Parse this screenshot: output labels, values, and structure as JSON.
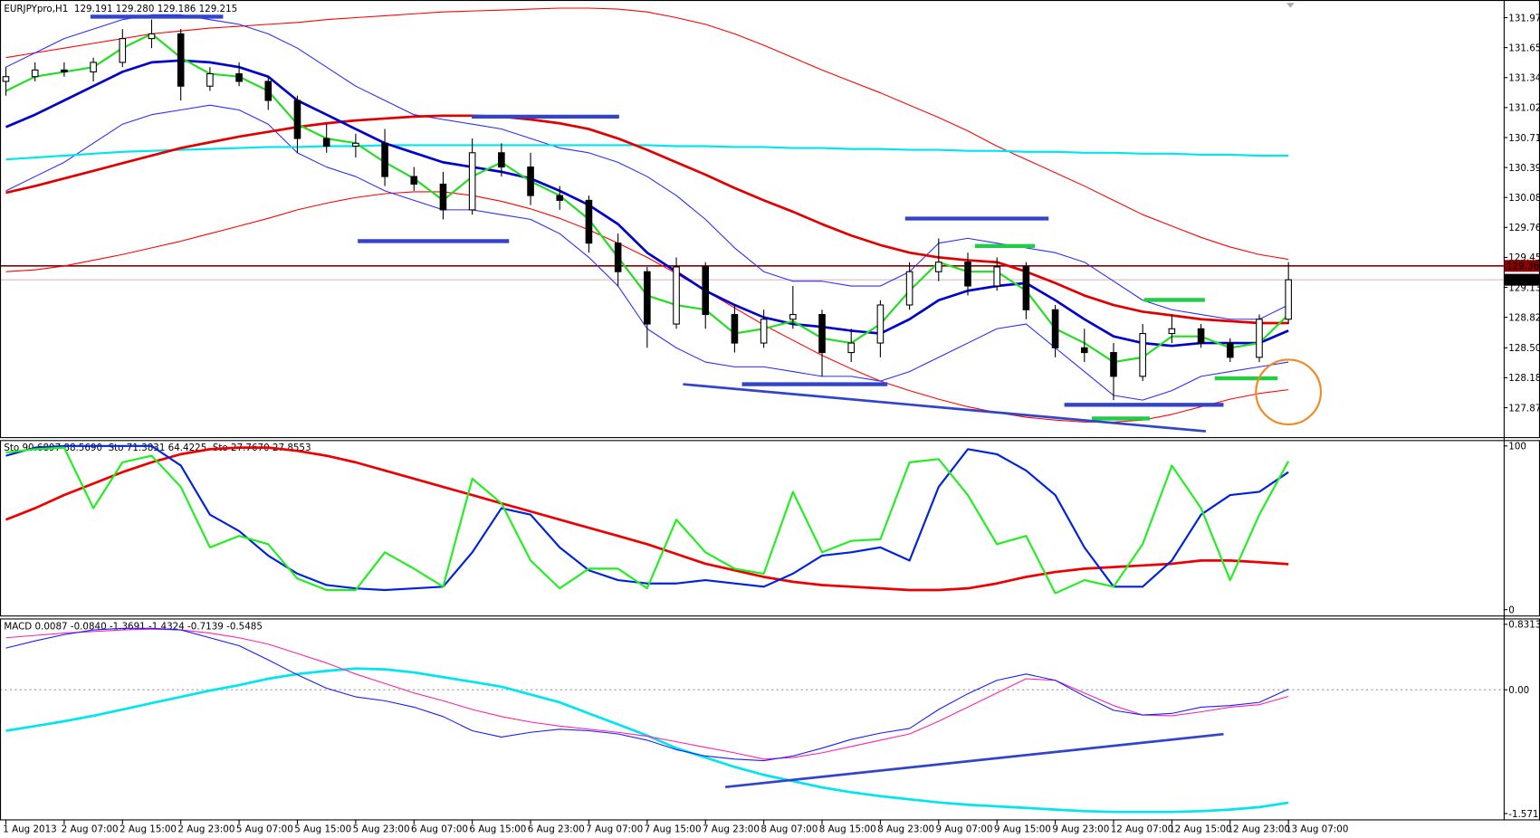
{
  "chart_data": [
    {
      "type": "candlestick",
      "title": "EURJPYpro,H1  129.191 129.280 129.186 129.215",
      "categories": [
        "1 Aug 2013",
        null,
        "2 Aug 07:00",
        null,
        "2 Aug 15:00",
        null,
        "2 Aug 23:00",
        null,
        "5 Aug 07:00",
        null,
        "5 Aug 15:00",
        null,
        "5 Aug 23:00",
        null,
        "6 Aug 07:00",
        null,
        "6 Aug 15:00",
        null,
        "6 Aug 23:00",
        null,
        "7 Aug 07:00",
        null,
        "7 Aug 15:00",
        null,
        "7 Aug 23:00",
        null,
        "8 Aug 07:00",
        null,
        "8 Aug 15:00",
        null,
        "8 Aug 23:00",
        null,
        "9 Aug 07:00",
        null,
        "9 Aug 15:00",
        null,
        "9 Aug 23:00",
        null,
        "12 Aug 07:00",
        null,
        "12 Aug 15:00",
        null,
        "12 Aug 23:00",
        null,
        "13 Aug 07:00"
      ],
      "open": [
        131.3,
        131.35,
        131.42,
        131.4,
        131.5,
        131.75,
        131.8,
        131.25,
        131.38,
        131.3,
        131.1,
        130.7,
        130.62,
        130.65,
        130.3,
        130.22,
        129.95,
        130.55,
        130.4,
        130.1,
        130.05,
        129.6,
        129.3,
        128.75,
        129.35,
        128.85,
        128.55,
        128.8,
        128.85,
        128.45,
        128.55,
        128.95,
        129.3,
        129.4,
        129.15,
        129.35,
        128.9,
        128.5,
        128.45,
        128.2,
        128.65,
        128.7,
        128.55,
        128.4,
        128.8
      ],
      "high": [
        131.45,
        131.5,
        131.5,
        131.55,
        131.85,
        131.95,
        131.85,
        131.45,
        131.5,
        131.35,
        131.15,
        130.85,
        130.75,
        130.8,
        130.4,
        130.35,
        130.7,
        130.65,
        130.55,
        130.2,
        130.1,
        129.7,
        129.35,
        129.45,
        129.4,
        128.95,
        128.9,
        129.15,
        128.9,
        128.7,
        129.0,
        129.4,
        129.65,
        129.5,
        129.45,
        129.4,
        128.95,
        128.7,
        128.55,
        128.75,
        128.85,
        128.75,
        128.6,
        128.85,
        129.4
      ],
      "low": [
        131.15,
        131.3,
        131.35,
        131.3,
        131.45,
        131.65,
        131.1,
        131.2,
        131.25,
        131.0,
        130.55,
        130.55,
        130.5,
        130.2,
        130.15,
        129.85,
        129.9,
        130.3,
        130.0,
        129.95,
        129.5,
        129.15,
        128.5,
        128.7,
        128.7,
        128.45,
        128.5,
        128.7,
        128.2,
        128.35,
        128.4,
        128.9,
        129.2,
        129.05,
        129.1,
        128.8,
        128.4,
        128.35,
        127.95,
        128.15,
        128.55,
        128.5,
        128.35,
        128.35,
        128.75
      ],
      "close": [
        131.35,
        131.42,
        131.4,
        131.5,
        131.75,
        131.8,
        131.25,
        131.38,
        131.3,
        131.1,
        130.7,
        130.62,
        130.65,
        130.3,
        130.22,
        129.95,
        130.55,
        130.4,
        130.1,
        130.05,
        129.6,
        129.3,
        128.75,
        129.35,
        128.85,
        128.55,
        128.8,
        128.85,
        128.45,
        128.55,
        128.95,
        129.3,
        129.4,
        129.15,
        129.35,
        128.9,
        128.5,
        128.45,
        128.2,
        128.65,
        128.7,
        128.55,
        128.4,
        128.8,
        129.215
      ],
      "series": [
        {
          "color": "#ff0000",
          "width": 1,
          "values": [
            131.55,
            131.6,
            131.65,
            131.7,
            131.75,
            131.8,
            131.83,
            131.86,
            131.88,
            131.9,
            131.92,
            131.95,
            131.97,
            131.99,
            132.01,
            132.03,
            132.04,
            132.05,
            132.06,
            132.07,
            132.07,
            132.06,
            132.03,
            131.97,
            131.9,
            131.8,
            131.68,
            131.55,
            131.42,
            131.3,
            131.18,
            131.05,
            130.92,
            130.78,
            130.62,
            130.48,
            130.34,
            130.2,
            130.05,
            129.9,
            129.78,
            129.66,
            129.56,
            129.48,
            129.43
          ]
        },
        {
          "color": "#ff0000",
          "width": 1,
          "values": [
            129.3,
            129.32,
            129.36,
            129.42,
            129.48,
            129.55,
            129.62,
            129.7,
            129.78,
            129.86,
            129.95,
            130.02,
            130.08,
            130.12,
            130.14,
            130.14,
            130.1,
            130.04,
            129.96,
            129.86,
            129.74,
            129.6,
            129.45,
            129.28,
            129.1,
            128.92,
            128.74,
            128.58,
            128.42,
            128.28,
            128.15,
            128.05,
            127.96,
            127.88,
            127.82,
            127.77,
            127.74,
            127.72,
            127.72,
            127.74,
            127.8,
            127.88,
            127.96,
            128.02,
            128.06
          ]
        },
        {
          "color": "#2b2bff",
          "width": 1,
          "values": [
            131.45,
            131.6,
            131.75,
            131.85,
            131.95,
            132.0,
            132.0,
            131.95,
            131.9,
            131.8,
            131.65,
            131.45,
            131.25,
            131.1,
            130.95,
            130.9,
            130.85,
            130.8,
            130.7,
            130.6,
            130.55,
            130.45,
            130.3,
            130.1,
            129.85,
            129.55,
            129.3,
            129.2,
            129.2,
            129.15,
            129.15,
            129.3,
            129.6,
            129.65,
            129.6,
            129.55,
            129.5,
            129.4,
            129.2,
            129.0,
            128.9,
            128.85,
            128.8,
            128.8,
            128.95
          ]
        },
        {
          "color": "#2b2bff",
          "width": 1,
          "values": [
            130.15,
            130.3,
            130.45,
            130.65,
            130.85,
            130.95,
            131.0,
            131.05,
            131.0,
            130.85,
            130.55,
            130.4,
            130.3,
            130.15,
            130.05,
            129.95,
            129.95,
            129.9,
            129.85,
            129.7,
            129.45,
            129.15,
            128.7,
            128.5,
            128.35,
            128.3,
            128.3,
            128.25,
            128.2,
            128.2,
            128.15,
            128.25,
            128.4,
            128.55,
            128.7,
            128.75,
            128.5,
            128.25,
            128.0,
            127.95,
            128.05,
            128.2,
            128.25,
            128.3,
            128.35
          ]
        },
        {
          "color": "#00e5ee",
          "width": 2,
          "values": [
            130.48,
            130.5,
            130.52,
            130.54,
            130.56,
            130.57,
            130.58,
            130.59,
            130.6,
            130.61,
            130.61,
            130.62,
            130.62,
            130.63,
            130.63,
            130.63,
            130.63,
            130.63,
            130.63,
            130.63,
            130.63,
            130.63,
            130.63,
            130.62,
            130.62,
            130.61,
            130.61,
            130.6,
            130.6,
            130.59,
            130.59,
            130.58,
            130.58,
            130.57,
            130.57,
            130.56,
            130.56,
            130.55,
            130.55,
            130.54,
            130.54,
            130.53,
            130.53,
            130.52,
            130.52
          ]
        },
        {
          "color": "#e00000",
          "width": 2.5,
          "values": [
            130.13,
            130.2,
            130.28,
            130.36,
            130.44,
            130.52,
            130.6,
            130.66,
            130.72,
            130.77,
            130.82,
            130.86,
            130.89,
            130.91,
            130.93,
            130.94,
            130.94,
            130.93,
            130.9,
            130.86,
            130.8,
            130.7,
            130.58,
            130.45,
            130.32,
            130.18,
            130.05,
            129.93,
            129.8,
            129.68,
            129.58,
            129.5,
            129.45,
            129.42,
            129.4,
            129.3,
            129.18,
            129.05,
            128.95,
            128.88,
            128.84,
            128.8,
            128.78,
            128.76,
            128.76
          ]
        },
        {
          "color": "#0000cc",
          "width": 2.5,
          "values": [
            130.82,
            130.95,
            131.1,
            131.25,
            131.4,
            131.5,
            131.52,
            131.5,
            131.45,
            131.35,
            131.1,
            130.95,
            130.8,
            130.65,
            130.55,
            130.45,
            130.4,
            130.35,
            130.28,
            130.15,
            130.0,
            129.8,
            129.5,
            129.3,
            129.1,
            128.95,
            128.82,
            128.75,
            128.72,
            128.68,
            128.65,
            128.8,
            129.0,
            129.1,
            129.15,
            129.18,
            129.0,
            128.8,
            128.62,
            128.55,
            128.52,
            128.55,
            128.55,
            128.55,
            128.68
          ]
        },
        {
          "color": "#22dd22",
          "width": 2,
          "values": [
            131.2,
            131.35,
            131.4,
            131.45,
            131.65,
            131.8,
            131.55,
            131.38,
            131.35,
            131.2,
            130.85,
            130.7,
            130.65,
            130.45,
            130.28,
            130.05,
            130.3,
            130.45,
            130.25,
            130.1,
            129.85,
            129.45,
            129.05,
            128.95,
            128.9,
            128.65,
            128.7,
            128.78,
            128.6,
            128.55,
            128.75,
            129.1,
            129.4,
            129.3,
            129.3,
            129.1,
            128.7,
            128.55,
            128.35,
            128.4,
            128.62,
            128.62,
            128.5,
            128.55,
            128.85
          ]
        }
      ],
      "level": 129.361,
      "level_color": "#8b0000",
      "last_price": 129.215,
      "ylim": [
        127.561,
        132.135
      ],
      "yticks": [
        {
          "value": 131.97,
          "label": "131.970"
        },
        131.655,
        {
          "value": 131.34,
          "label": "131.340"
        },
        131.025,
        {
          "value": 130.71,
          "label": "130.710"
        },
        130.395,
        {
          "value": 130.08,
          "label": "130.080"
        },
        129.765,
        {
          "value": 129.45,
          "label": "129.450"
        },
        129.135,
        {
          "value": 128.82,
          "label": "128.820"
        },
        {
          "value": 128.5,
          "label": "128.500"
        },
        128.185,
        {
          "value": 127.87,
          "label": "127.870"
        }
      ],
      "grid": false
    },
    {
      "type": "line",
      "title": "Sto 90.6897 88.5690  Sto 71.3831 64.4225  Sto 27.7670 27.8553",
      "series": [
        {
          "color": "#ee0000",
          "width": 2.5,
          "values": [
            55,
            62,
            70,
            77,
            84,
            90,
            95,
            98,
            99,
            99,
            97,
            94,
            90,
            85,
            80,
            75,
            70,
            65,
            60,
            55,
            50,
            45,
            40,
            34,
            28,
            24,
            20,
            17,
            15,
            14,
            13,
            12,
            12,
            13,
            16,
            20,
            23,
            25,
            26,
            27,
            28,
            30,
            30,
            29,
            27.77
          ]
        },
        {
          "color": "#0022dd",
          "width": 2,
          "values": [
            94,
            99,
            100,
            100,
            100,
            100,
            88,
            58,
            48,
            33,
            22,
            15,
            13,
            12,
            13,
            14,
            35,
            62,
            58,
            38,
            24,
            18,
            16,
            16,
            18,
            16,
            14,
            22,
            33,
            35,
            38,
            30,
            75,
            98,
            95,
            85,
            70,
            38,
            14,
            14,
            30,
            58,
            70,
            72,
            84
          ]
        },
        {
          "color": "#22ee22",
          "width": 2,
          "values": [
            96,
            98,
            99,
            62,
            90,
            94,
            75,
            38,
            45,
            40,
            19,
            12,
            12,
            35,
            25,
            14,
            80,
            65,
            30,
            13,
            25,
            25,
            13,
            55,
            35,
            25,
            22,
            72,
            35,
            42,
            43,
            90,
            92,
            70,
            40,
            45,
            10,
            18,
            14,
            40,
            88,
            62,
            18,
            58,
            90.69
          ]
        }
      ],
      "ylim": [
        -3.6,
        103
      ],
      "yticks": [
        100,
        0
      ],
      "grid": false
    },
    {
      "type": "line",
      "title": "MACD 0.0087 -0.0840 -1.3691 -1.4324 -0.7139 -0.5485",
      "series": [
        {
          "color": "#00e5ee",
          "width": 2.5,
          "values": [
            -0.52,
            -0.46,
            -0.4,
            -0.33,
            -0.25,
            -0.17,
            -0.09,
            -0.01,
            0.06,
            0.14,
            0.2,
            0.24,
            0.27,
            0.26,
            0.22,
            0.16,
            0.1,
            0.04,
            -0.06,
            -0.16,
            -0.3,
            -0.44,
            -0.58,
            -0.74,
            -0.86,
            -0.98,
            -1.08,
            -1.16,
            -1.24,
            -1.3,
            -1.35,
            -1.39,
            -1.43,
            -1.46,
            -1.48,
            -1.5,
            -1.52,
            -1.54,
            -1.55,
            -1.55,
            -1.55,
            -1.54,
            -1.52,
            -1.49,
            -1.4324
          ]
        },
        {
          "color": "#ff22aa",
          "width": 1,
          "values": [
            0.66,
            0.69,
            0.72,
            0.74,
            0.76,
            0.77,
            0.76,
            0.72,
            0.66,
            0.58,
            0.46,
            0.34,
            0.2,
            0.08,
            -0.04,
            -0.14,
            -0.25,
            -0.34,
            -0.41,
            -0.46,
            -0.5,
            -0.54,
            -0.59,
            -0.66,
            -0.73,
            -0.8,
            -0.88,
            -0.86,
            -0.8,
            -0.72,
            -0.64,
            -0.56,
            -0.4,
            -0.22,
            -0.04,
            0.14,
            0.12,
            -0.04,
            -0.2,
            -0.32,
            -0.33,
            -0.28,
            -0.22,
            -0.19,
            -0.084
          ]
        },
        {
          "color": "#1a1aff",
          "width": 1,
          "values": [
            0.53,
            0.62,
            0.7,
            0.76,
            0.78,
            0.78,
            0.76,
            0.66,
            0.56,
            0.38,
            0.19,
            0.02,
            -0.09,
            -0.14,
            -0.22,
            -0.34,
            -0.52,
            -0.6,
            -0.54,
            -0.5,
            -0.52,
            -0.56,
            -0.64,
            -0.76,
            -0.84,
            -0.88,
            -0.9,
            -0.84,
            -0.74,
            -0.63,
            -0.55,
            -0.49,
            -0.25,
            -0.05,
            0.12,
            0.2,
            0.12,
            -0.08,
            -0.26,
            -0.32,
            -0.3,
            -0.22,
            -0.2,
            -0.16,
            0.0087
          ]
        }
      ],
      "ylim": [
        -1.645,
        0.893
      ],
      "yticks": [
        0.8313,
        {
          "value": 0,
          "label": "0.00"
        },
        -1.5712
      ],
      "zero_line": true,
      "grid": false
    }
  ]
}
